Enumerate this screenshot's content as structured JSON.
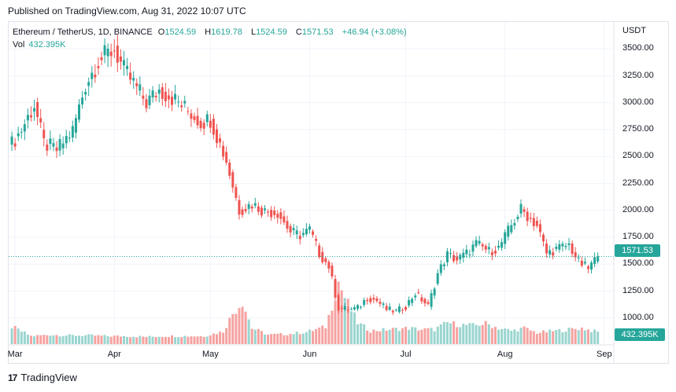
{
  "published": "Published on TradingView.com, Aug 31, 2022 10:07 UTC",
  "legend": {
    "symbol": "Ethereum / TetherUS, 1D, BINANCE",
    "open_label": "O",
    "open": "1524.59",
    "high_label": "H",
    "high": "1619.78",
    "low_label": "L",
    "low": "1524.59",
    "close_label": "C",
    "close": "1571.53",
    "change": "+46.94 (+3.08%)"
  },
  "volume_legend": {
    "label": "Vol",
    "value": "432.395K"
  },
  "currency": "USDT",
  "price_tag": "1571.53",
  "volume_tag": "432.395K",
  "brand": {
    "logo": "17",
    "name": "TradingView"
  },
  "colors": {
    "up": "#26a69a",
    "down": "#ef5350",
    "vol_up": "#9ad5cf",
    "vol_down": "#f5a2a0"
  },
  "chart_data": {
    "type": "candlestick",
    "ylim": [
      750,
      3750
    ],
    "y_ticks": [
      "3500.00",
      "3250.00",
      "3000.00",
      "2750.00",
      "2500.00",
      "2250.00",
      "2000.00",
      "1750.00",
      "1500.00",
      "1250.00",
      "1000.00",
      "750.00"
    ],
    "x_tick_labels": [
      "Mar",
      "Apr",
      "May",
      "Jun",
      "Jul",
      "Aug",
      "Sep"
    ],
    "x_tick_days": [
      2,
      33,
      63,
      94,
      124,
      155,
      186
    ],
    "last_price": 1571.53,
    "series": [
      {
        "name": "ETH/USDT daily close",
        "x": [
          1,
          4,
          8,
          11,
          15,
          20,
          24,
          28,
          33,
          36,
          39,
          43,
          47,
          51,
          55,
          60,
          63,
          68,
          72,
          76,
          80,
          84,
          88,
          91,
          94,
          97,
          100,
          103,
          107,
          109,
          112,
          115,
          118,
          121,
          124,
          127,
          131,
          134,
          137,
          140,
          143,
          146,
          150,
          153,
          157,
          160,
          165,
          168,
          171,
          175,
          178,
          181,
          184
        ],
        "values": [
          2620,
          2750,
          2980,
          2620,
          2560,
          2740,
          3170,
          3390,
          3500,
          3300,
          3180,
          3000,
          3120,
          3050,
          2950,
          2820,
          2850,
          2460,
          2000,
          2060,
          1990,
          1980,
          1800,
          1770,
          1820,
          1600,
          1480,
          1090,
          1080,
          1090,
          1190,
          1160,
          1080,
          1060,
          1110,
          1230,
          1110,
          1410,
          1590,
          1540,
          1600,
          1690,
          1620,
          1650,
          1860,
          2010,
          1860,
          1600,
          1640,
          1680,
          1520,
          1460,
          1571.53
        ]
      }
    ],
    "volume": {
      "name": "Volume",
      "ylim": [
        0,
        650
      ],
      "x": [
        1,
        7,
        13,
        19,
        25,
        31,
        37,
        43,
        49,
        55,
        61,
        67,
        70,
        73,
        76,
        81,
        87,
        93,
        99,
        101,
        103,
        105,
        109,
        113,
        119,
        125,
        129,
        133,
        137,
        141,
        145,
        149,
        153,
        157,
        161,
        165,
        171,
        175,
        179,
        184
      ],
      "values": [
        130,
        60,
        70,
        65,
        65,
        60,
        60,
        55,
        60,
        60,
        60,
        95,
        230,
        320,
        120,
        70,
        75,
        90,
        130,
        290,
        470,
        350,
        160,
        100,
        110,
        120,
        110,
        110,
        160,
        145,
        140,
        155,
        120,
        100,
        120,
        85,
        100,
        110,
        120,
        90
      ]
    }
  }
}
